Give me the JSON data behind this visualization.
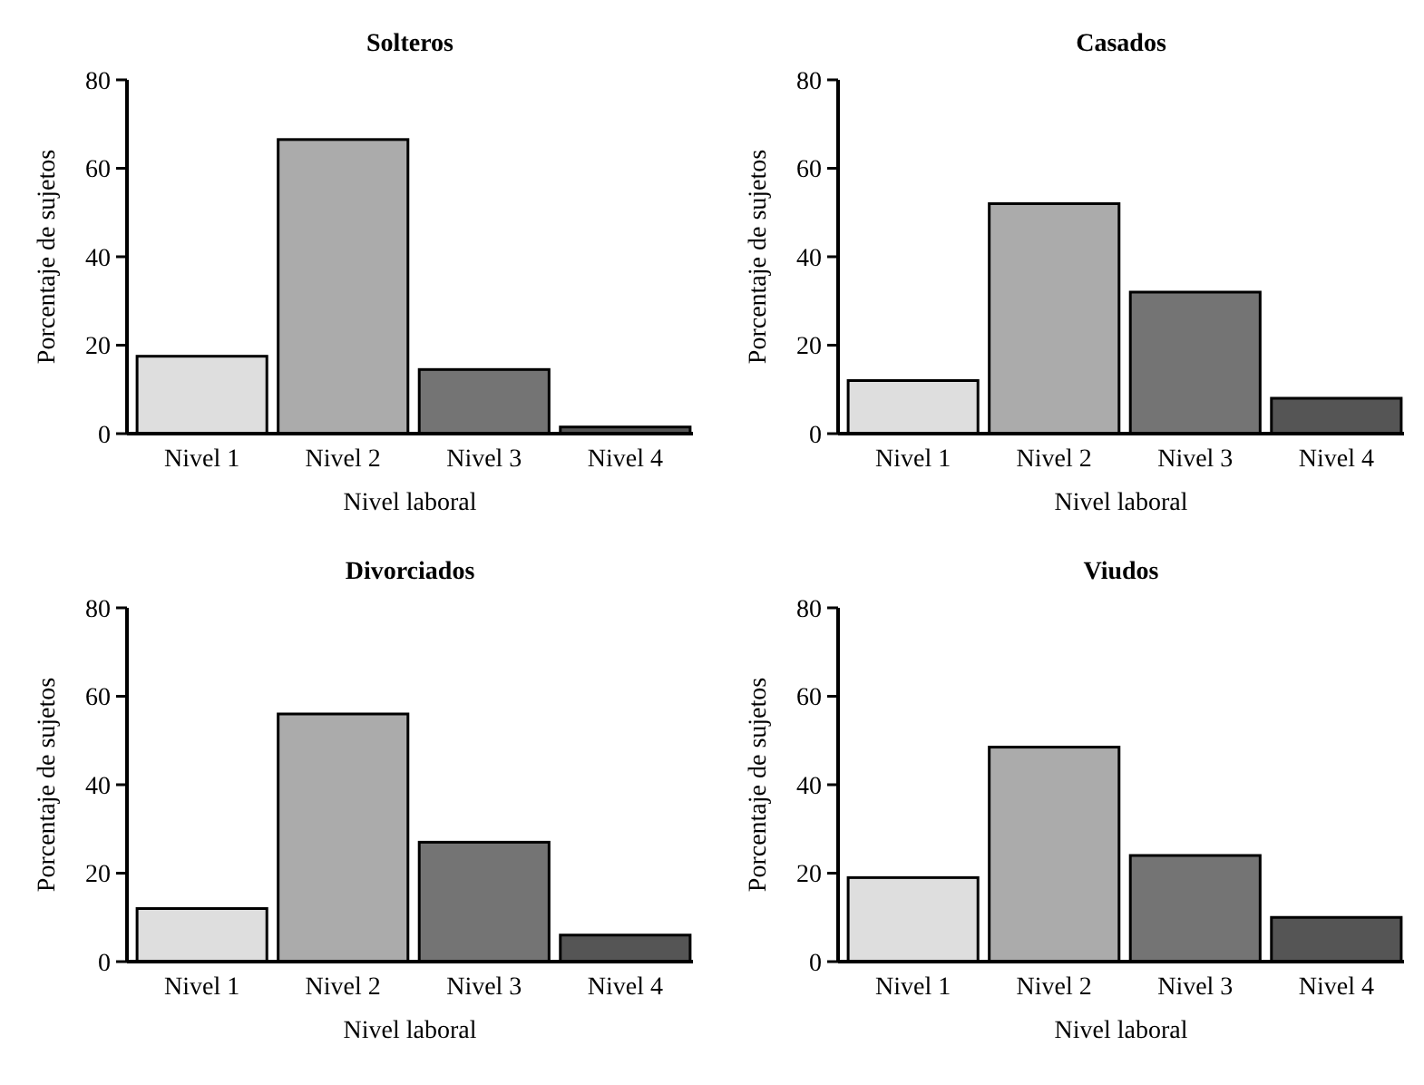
{
  "chart_data": [
    {
      "type": "bar",
      "title": "Solteros",
      "xlabel": "Nivel laboral",
      "ylabel": "Porcentaje de sujetos",
      "categories": [
        "Nivel 1",
        "Nivel 2",
        "Nivel 3",
        "Nivel 4"
      ],
      "values": [
        17.5,
        66.5,
        14.5,
        1.5
      ],
      "colors": [
        "#dedede",
        "#ababab",
        "#747474",
        "#555555"
      ],
      "ylim": [
        0,
        80
      ],
      "yticks": [
        0,
        20,
        40,
        60,
        80
      ]
    },
    {
      "type": "bar",
      "title": "Casados",
      "xlabel": "Nivel laboral",
      "ylabel": "Porcentaje de sujetos",
      "categories": [
        "Nivel 1",
        "Nivel 2",
        "Nivel 3",
        "Nivel 4"
      ],
      "values": [
        12,
        52,
        32,
        8
      ],
      "colors": [
        "#dedede",
        "#ababab",
        "#747474",
        "#555555"
      ],
      "ylim": [
        0,
        80
      ],
      "yticks": [
        0,
        20,
        40,
        60,
        80
      ]
    },
    {
      "type": "bar",
      "title": "Divorciados",
      "xlabel": "Nivel laboral",
      "ylabel": "Porcentaje de sujetos",
      "categories": [
        "Nivel 1",
        "Nivel 2",
        "Nivel 3",
        "Nivel 4"
      ],
      "values": [
        12,
        56,
        27,
        6
      ],
      "colors": [
        "#dedede",
        "#ababab",
        "#747474",
        "#555555"
      ],
      "ylim": [
        0,
        80
      ],
      "yticks": [
        0,
        20,
        40,
        60,
        80
      ]
    },
    {
      "type": "bar",
      "title": "Viudos",
      "xlabel": "Nivel laboral",
      "ylabel": "Porcentaje de sujetos",
      "categories": [
        "Nivel 1",
        "Nivel 2",
        "Nivel 3",
        "Nivel 4"
      ],
      "values": [
        19,
        48.5,
        24,
        10
      ],
      "colors": [
        "#dedede",
        "#ababab",
        "#747474",
        "#555555"
      ],
      "ylim": [
        0,
        80
      ],
      "yticks": [
        0,
        20,
        40,
        60,
        80
      ]
    }
  ]
}
